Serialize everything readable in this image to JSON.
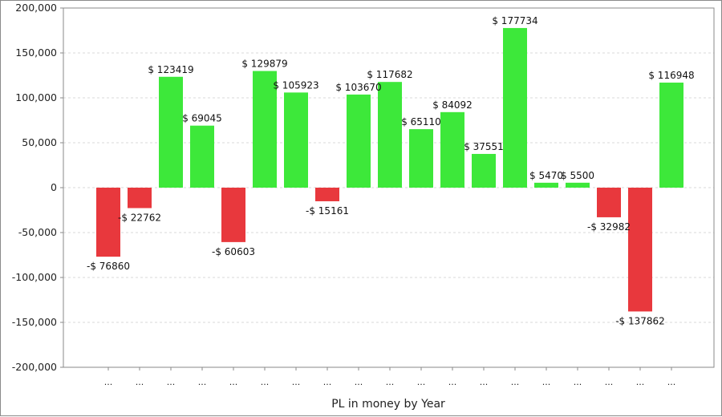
{
  "chart_data": {
    "type": "bar",
    "title": "",
    "xlabel": "PL in money by Year",
    "ylabel": "",
    "ylim": [
      -200000,
      200000
    ],
    "yticks": [
      -200000,
      -150000,
      -100000,
      -50000,
      0,
      50000,
      100000,
      150000,
      200000
    ],
    "ytick_labels": [
      "-200,000",
      "-150,000",
      "-100,000",
      "-50,000",
      "0",
      "50,000",
      "100,000",
      "150,000",
      "200,000"
    ],
    "grid": true,
    "legend": "none",
    "categories": [
      "...",
      "...",
      "...",
      "...",
      "...",
      "...",
      "...",
      "...",
      "...",
      "...",
      "...",
      "...",
      "...",
      "...",
      "...",
      "...",
      "...",
      "...",
      "..."
    ],
    "values": [
      -76860,
      -22762,
      123419,
      69045,
      -60603,
      129879,
      105923,
      -15161,
      103670,
      117682,
      65110,
      84092,
      37551,
      177734,
      5470,
      5500,
      -32982,
      -137862,
      116948
    ],
    "data_labels": [
      "-$ 76860",
      "-$ 22762",
      "$ 123419",
      "$ 69045",
      "-$ 60603",
      "$ 129879",
      "$ 105923",
      "-$ 15161",
      "$ 103670",
      "$ 117682",
      "$ 65110",
      "$ 84092",
      "$ 37551",
      "$ 177734",
      "$ 5470",
      "$ 5500",
      "-$ 32982",
      "-$ 137862",
      "$ 116948"
    ],
    "colors": {
      "positive": "#3de83a",
      "negative": "#e8383d",
      "grid": "#d8d8d8",
      "axis": "#8a8a8a"
    }
  }
}
